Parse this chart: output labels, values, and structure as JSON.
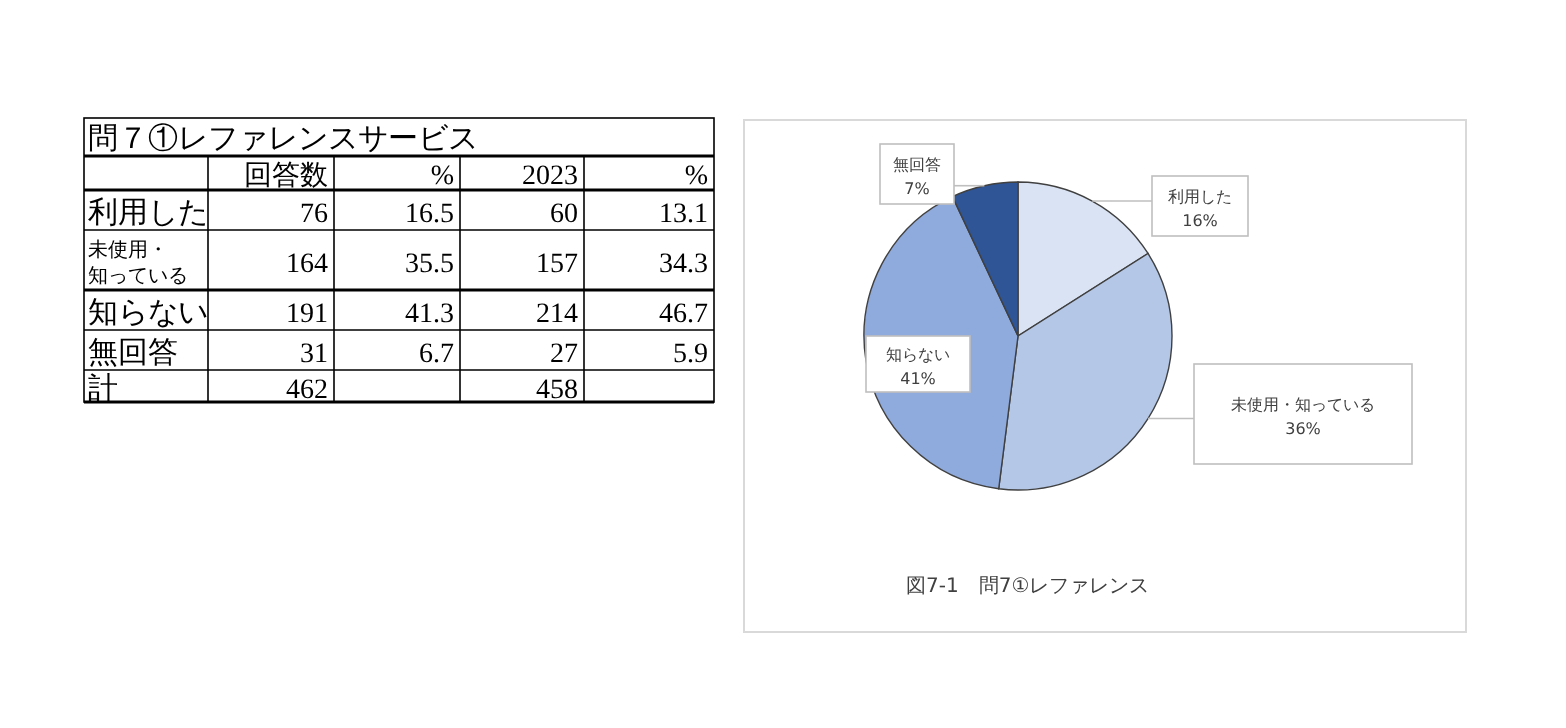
{
  "chart_data": [
    {
      "type": "other",
      "title": "問７①レファレンスサービス",
      "data_labels": true,
      "categories": [
        "利用した",
        "未使用・知っている",
        "知らない",
        "無回答",
        "計"
      ],
      "series": [
        {
          "name": "回答数",
          "values": [
            76,
            164,
            191,
            31,
            462
          ]
        },
        {
          "name": "%",
          "values": [
            16.5,
            35.5,
            41.3,
            6.7,
            null
          ]
        },
        {
          "name": "2023",
          "values": [
            60,
            157,
            214,
            27,
            458
          ]
        },
        {
          "name": "%",
          "values": [
            13.1,
            34.3,
            46.7,
            5.9,
            null
          ]
        }
      ]
    },
    {
      "type": "pie",
      "title": "図7-1　問7①レファレンス",
      "categories": [
        "利用した",
        "未使用・知っている",
        "知らない",
        "無回答"
      ],
      "values": [
        16,
        36,
        41,
        7
      ],
      "value_labels": [
        "16%",
        "36%",
        "41%",
        "7%"
      ],
      "colors": [
        "#dae3f3",
        "#b4c7e7",
        "#8faadc",
        "#2f5597"
      ],
      "data_labels": true
    }
  ]
}
